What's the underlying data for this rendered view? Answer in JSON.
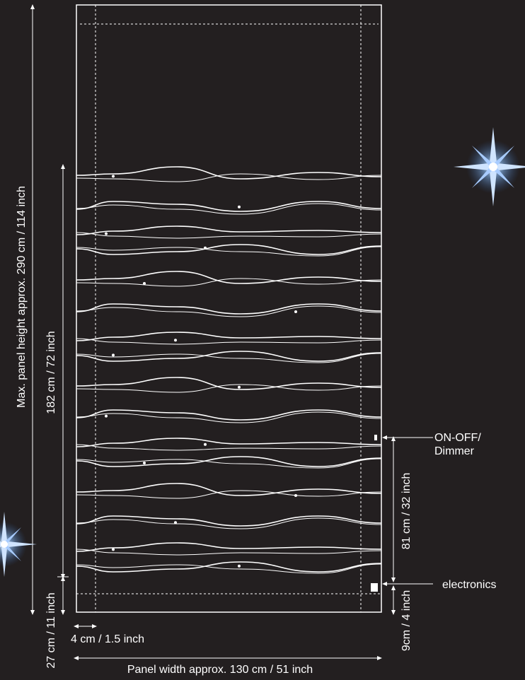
{
  "colors": {
    "background": "#231f20",
    "lines": "#ffffff",
    "sparkle": "#8fc3ff"
  },
  "icons": {
    "sparkle": "sparkle-star-icon"
  },
  "labels": {
    "max_height": "Max. panel  height approx. 290 cm / 114 inch",
    "active_height": "182 cm / 72 inch",
    "bottom_height": "27 cm / 11 inch",
    "margin": "4 cm / 1.5 inch",
    "width": "Panel width approx. 130 cm / 51 inch",
    "switch_height": "81 cm / 32 inch",
    "electronics_height": "9cm / 4 inch",
    "switch_line1": "ON-OFF/",
    "switch_line2": "Dimmer",
    "electronics": "electronics"
  }
}
